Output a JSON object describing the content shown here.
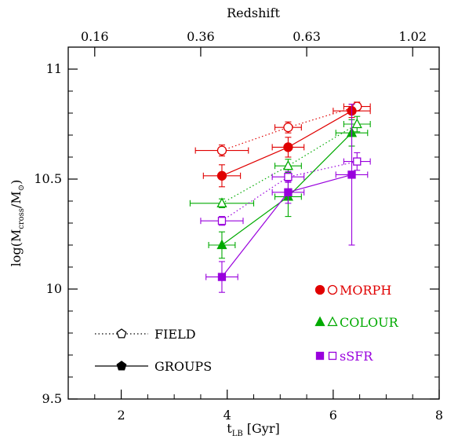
{
  "chart_data": {
    "type": "scatter",
    "xlabel_main": "t",
    "xlabel_sub": "LB",
    "xlabel_unit": "[Gyr]",
    "ylabel": "log(M",
    "ylabel_sub": "cross",
    "ylabel_mid": "/M",
    "ylabel_end": ")",
    "top_axis_label": "Redshift",
    "top_ticks": [
      {
        "label": "0.16",
        "t": 1.5
      },
      {
        "label": "0.36",
        "t": 3.5
      },
      {
        "label": "0.63",
        "t": 5.5
      },
      {
        "label": "1.02",
        "t": 7.5
      }
    ],
    "xlim": [
      1.0,
      8.0
    ],
    "ylim": [
      9.5,
      11.1
    ],
    "x_ticks": [
      "2",
      "4",
      "6",
      "8"
    ],
    "x_tick_values": [
      2,
      4,
      6,
      8
    ],
    "y_ticks": [
      "9.5",
      "10",
      "10.5",
      "11"
    ],
    "y_tick_values": [
      9.5,
      10.0,
      10.5,
      11.0
    ],
    "series": [
      {
        "name": "MORPH",
        "sample": "FIELD",
        "color": "#e00000",
        "marker": "circle",
        "filled": false,
        "line": "dotted",
        "x": [
          3.9,
          5.15,
          6.45
        ],
        "y": [
          10.63,
          10.735,
          10.83
        ],
        "xerr": [
          0.5,
          0.25,
          0.25
        ],
        "yerr": [
          0.025,
          0.025,
          0.02
        ]
      },
      {
        "name": "MORPH",
        "sample": "GROUPS",
        "color": "#e00000",
        "marker": "circle",
        "filled": true,
        "line": "solid",
        "x": [
          3.9,
          5.15,
          6.35
        ],
        "y": [
          10.515,
          10.645,
          10.81
        ],
        "xerr": [
          0.35,
          0.3,
          0.35
        ],
        "yerr": [
          0.05,
          0.045,
          0.03
        ]
      },
      {
        "name": "COLOUR",
        "sample": "FIELD",
        "color": "#00aa00",
        "marker": "triangle",
        "filled": false,
        "line": "dotted",
        "x": [
          3.9,
          5.15,
          6.45
        ],
        "y": [
          10.39,
          10.56,
          10.75
        ],
        "xerr": [
          0.6,
          0.25,
          0.25
        ],
        "yerr": [
          0.02,
          0.03,
          0.035
        ]
      },
      {
        "name": "COLOUR",
        "sample": "GROUPS",
        "color": "#00aa00",
        "marker": "triangle",
        "filled": true,
        "line": "solid",
        "x": [
          3.9,
          5.15,
          6.35
        ],
        "y": [
          10.2,
          10.42,
          10.71
        ],
        "xerr": [
          0.25,
          0.25,
          0.3
        ],
        "yerr": [
          0.06,
          0.09,
          0.06
        ]
      },
      {
        "name": "sSFR",
        "sample": "FIELD",
        "color": "#9900dd",
        "marker": "square",
        "filled": false,
        "line": "dotted",
        "x": [
          3.9,
          5.15,
          6.45
        ],
        "y": [
          10.31,
          10.51,
          10.58
        ],
        "xerr": [
          0.4,
          0.3,
          0.25
        ],
        "yerr": [
          0.02,
          0.025,
          0.04
        ]
      },
      {
        "name": "sSFR",
        "sample": "GROUPS",
        "color": "#9900dd",
        "marker": "square",
        "filled": true,
        "line": "solid",
        "x": [
          3.9,
          5.15,
          6.35
        ],
        "y": [
          10.055,
          10.44,
          10.52
        ],
        "xerr": [
          0.3,
          0.3,
          0.3
        ],
        "yerr": [
          0.07,
          0.05,
          0.32
        ]
      }
    ],
    "legend_samples": [
      {
        "label": "FIELD",
        "marker": "pentagon",
        "filled": false,
        "line": "dotted"
      },
      {
        "label": "GROUPS",
        "marker": "pentagon",
        "filled": true,
        "line": "solid"
      }
    ],
    "legend_quantities": [
      {
        "label": "MORPH",
        "color": "#e00000",
        "marker": "circle"
      },
      {
        "label": "COLOUR",
        "color": "#00aa00",
        "marker": "triangle"
      },
      {
        "label": "sSFR",
        "color": "#9900dd",
        "marker": "square"
      }
    ],
    "legend_position": "bottom"
  }
}
